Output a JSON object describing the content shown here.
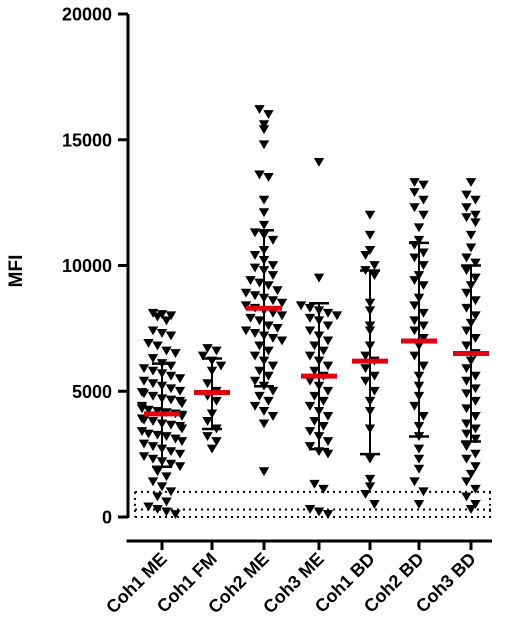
{
  "chart_data": {
    "type": "scatter",
    "title": "",
    "xlabel": "",
    "ylabel": "MFI",
    "ylim": [
      0,
      20000
    ],
    "yticks": [
      0,
      5000,
      10000,
      15000,
      20000
    ],
    "grid": false,
    "marker": "down-triangle",
    "colors": {
      "points": "#000000",
      "mean": "#e0000f",
      "sd": "#000000",
      "reference": "#000000"
    },
    "reference_lines": [
      0,
      300,
      1000
    ],
    "categories": [
      "Coh1 ME",
      "Coh1 FM",
      "Coh2 ME",
      "Coh3 ME",
      "Coh1 BD",
      "Coh2 BD",
      "Coh3 BD"
    ],
    "series": [
      {
        "category": "Coh1 ME",
        "mean": 4100,
        "sd_low": 2000,
        "sd_high": 6100,
        "values": [
          8100,
          8050,
          8000,
          7950,
          7800,
          7400,
          7300,
          7200,
          6900,
          6800,
          6600,
          6500,
          6300,
          6100,
          6000,
          5900,
          5800,
          5700,
          5600,
          5500,
          5400,
          5300,
          5200,
          5100,
          5000,
          4950,
          4900,
          4800,
          4700,
          4650,
          4600,
          4500,
          4400,
          4300,
          4250,
          4200,
          4150,
          4100,
          4050,
          4000,
          3900,
          3850,
          3800,
          3700,
          3650,
          3600,
          3500,
          3400,
          3300,
          3250,
          3200,
          3100,
          3000,
          2900,
          2800,
          2700,
          2600,
          2500,
          2400,
          2300,
          2200,
          2100,
          2000,
          1800,
          1600,
          1400,
          1200,
          1000,
          800,
          600,
          400,
          300,
          200,
          100
        ]
      },
      {
        "category": "Coh1 FM",
        "mean": 4950,
        "sd_low": 3500,
        "sd_high": 6300,
        "values": [
          6700,
          6600,
          6400,
          6200,
          6000,
          5800,
          5300,
          5000,
          4800,
          4600,
          4100,
          3800,
          3500,
          3200,
          3000,
          2700
        ]
      },
      {
        "category": "Coh2 ME",
        "mean": 8300,
        "sd_low": 5200,
        "sd_high": 11400,
        "values": [
          16200,
          16000,
          15600,
          15400,
          14800,
          13600,
          13500,
          12600,
          12100,
          11600,
          11300,
          11200,
          11000,
          10600,
          10400,
          10200,
          10000,
          9900,
          9800,
          9600,
          9400,
          9300,
          9200,
          9000,
          8900,
          8800,
          8700,
          8600,
          8500,
          8400,
          8300,
          8200,
          8100,
          8000,
          7900,
          7800,
          7600,
          7500,
          7400,
          7300,
          7200,
          7100,
          7000,
          6800,
          6600,
          6400,
          6200,
          6000,
          5800,
          5600,
          5400,
          5200,
          5000,
          4800,
          4600,
          4400,
          4200,
          4000,
          3700,
          1800
        ]
      },
      {
        "category": "Coh3 ME",
        "mean": 5600,
        "sd_low": 2700,
        "sd_high": 8500,
        "values": [
          14100,
          9500,
          8400,
          8300,
          8200,
          8100,
          8000,
          7900,
          7800,
          7600,
          7400,
          7200,
          7000,
          6800,
          6600,
          6400,
          6200,
          6000,
          5800,
          5600,
          5400,
          5200,
          5000,
          4800,
          4600,
          4400,
          4200,
          4000,
          3800,
          3600,
          3400,
          3200,
          3000,
          2800,
          2600,
          2500,
          1300,
          1100,
          300,
          200,
          100
        ]
      },
      {
        "category": "Coh1 BD",
        "mean": 6200,
        "sd_low": 2500,
        "sd_high": 9800,
        "values": [
          12000,
          11200,
          10600,
          10400,
          10000,
          9800,
          9600,
          8500,
          8200,
          7600,
          7400,
          6800,
          6400,
          6200,
          5900,
          5600,
          5400,
          5000,
          4600,
          4200,
          3500,
          2300,
          1500,
          1200,
          900,
          500
        ]
      },
      {
        "category": "Coh2 BD",
        "mean": 7000,
        "sd_low": 3200,
        "sd_high": 10900,
        "values": [
          13300,
          13200,
          12900,
          12600,
          12300,
          12000,
          11500,
          11000,
          10800,
          10500,
          10300,
          10000,
          9600,
          9400,
          9200,
          8700,
          8400,
          8100,
          7800,
          7600,
          7400,
          7100,
          6800,
          6400,
          6000,
          5600,
          5200,
          4800,
          4400,
          4000,
          3600,
          3200,
          2700,
          2300,
          1900,
          1400,
          1000,
          500
        ]
      },
      {
        "category": "Coh3 BD",
        "mean": 6500,
        "sd_low": 3000,
        "sd_high": 10000,
        "values": [
          13300,
          12800,
          12600,
          12300,
          12000,
          11900,
          11700,
          11200,
          10700,
          10300,
          10100,
          9800,
          9500,
          9200,
          8900,
          8600,
          8300,
          8000,
          7700,
          7400,
          7100,
          6800,
          6500,
          6200,
          5900,
          5600,
          5400,
          5100,
          4900,
          4600,
          4300,
          4000,
          3700,
          3500,
          3300,
          3100,
          2800,
          2500,
          2300,
          2000,
          1700,
          1400,
          1100,
          800,
          500,
          300
        ]
      }
    ]
  }
}
